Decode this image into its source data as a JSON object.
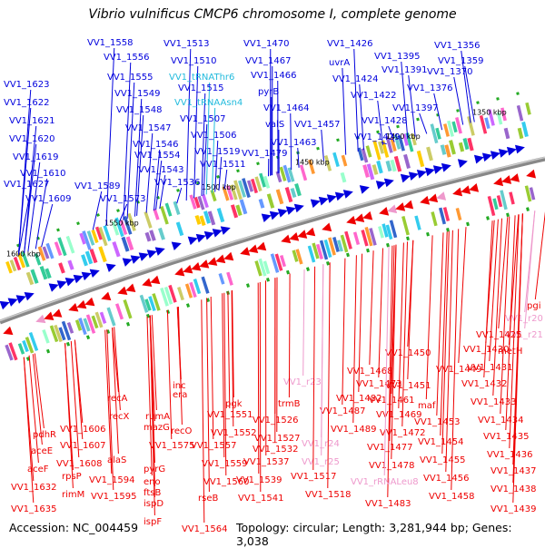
{
  "title": "Vibrio vulnificus CMCP6 chromosome I, complete genome",
  "footer": {
    "accession": "Accession: NC_004459",
    "summary": "Topology: circular; Length: 3,281,944 bp; Genes: 3,038"
  },
  "colors": {
    "forward": "#0000dd",
    "reverse": "#ee0000",
    "rna_forward": "#22bbdd",
    "rna_reverse": "#ee99cc",
    "backbone": "#888888",
    "green_mark": "#22aa22"
  },
  "ticks": [
    "1600 kbp",
    "1550 kbp",
    "1500 kbp",
    "1450 kbp",
    "1400 kbp",
    "1350 kbp"
  ],
  "top_labels": [
    {
      "text": "VV1_1623",
      "kind": "gene"
    },
    {
      "text": "VV1_1622",
      "kind": "gene"
    },
    {
      "text": "VV1_1621",
      "kind": "gene"
    },
    {
      "text": "VV1_1620",
      "kind": "gene"
    },
    {
      "text": "VV1_1619",
      "kind": "gene"
    },
    {
      "text": "VV1_1610",
      "kind": "gene"
    },
    {
      "text": "VV1_1627",
      "kind": "gene"
    },
    {
      "text": "VV1_1609",
      "kind": "gene"
    },
    {
      "text": "VV1_1589",
      "kind": "gene"
    },
    {
      "text": "VV1_1573",
      "kind": "gene"
    },
    {
      "text": "VV1_1558",
      "kind": "gene"
    },
    {
      "text": "VV1_1556",
      "kind": "gene"
    },
    {
      "text": "VV1_1555",
      "kind": "gene"
    },
    {
      "text": "VV1_1549",
      "kind": "gene"
    },
    {
      "text": "VV1_1548",
      "kind": "gene"
    },
    {
      "text": "VV1_1547",
      "kind": "gene"
    },
    {
      "text": "VV1_1546",
      "kind": "gene"
    },
    {
      "text": "VV1_1554",
      "kind": "gene"
    },
    {
      "text": "VV1_1543",
      "kind": "gene"
    },
    {
      "text": "VV1_1536",
      "kind": "gene"
    },
    {
      "text": "VV1_1513",
      "kind": "gene"
    },
    {
      "text": "VV1_1510",
      "kind": "gene"
    },
    {
      "text": "VV1_tRNAThr6",
      "kind": "rna"
    },
    {
      "text": "VV1_1515",
      "kind": "gene"
    },
    {
      "text": "VV1_tRNAAsn4",
      "kind": "rna"
    },
    {
      "text": "VV1_1507",
      "kind": "gene"
    },
    {
      "text": "VV1_1506",
      "kind": "gene"
    },
    {
      "text": "VV1_1519",
      "kind": "gene"
    },
    {
      "text": "VV1_1511",
      "kind": "gene"
    },
    {
      "text": "VV1_1470",
      "kind": "gene"
    },
    {
      "text": "VV1_1467",
      "kind": "gene"
    },
    {
      "text": "VV1_1466",
      "kind": "gene"
    },
    {
      "text": "pyrB",
      "kind": "gene"
    },
    {
      "text": "VV1_1464",
      "kind": "gene"
    },
    {
      "text": "valS",
      "kind": "gene"
    },
    {
      "text": "VV1_1463",
      "kind": "gene"
    },
    {
      "text": "VV1_1479",
      "kind": "gene"
    },
    {
      "text": "VV1_1457",
      "kind": "gene"
    },
    {
      "text": "VV1_1426",
      "kind": "gene"
    },
    {
      "text": "uvrA",
      "kind": "gene"
    },
    {
      "text": "VV1_1424",
      "kind": "gene"
    },
    {
      "text": "VV1_1422",
      "kind": "gene"
    },
    {
      "text": "VV1_1428",
      "kind": "gene"
    },
    {
      "text": "VV1_1429",
      "kind": "gene"
    },
    {
      "text": "VV1_1395",
      "kind": "gene"
    },
    {
      "text": "VV1_1391",
      "kind": "gene"
    },
    {
      "text": "VV1_1397",
      "kind": "gene"
    },
    {
      "text": "VV1_1376",
      "kind": "gene"
    },
    {
      "text": "VV1_1370",
      "kind": "gene"
    },
    {
      "text": "VV1_1356",
      "kind": "gene"
    },
    {
      "text": "VV1_1359",
      "kind": "gene"
    }
  ],
  "bottom_labels": [
    {
      "text": "pgi",
      "kind": "gene"
    },
    {
      "text": "VV1_r20",
      "kind": "rna"
    },
    {
      "text": "VV1_r21",
      "kind": "rna"
    },
    {
      "text": "VV1_1425",
      "kind": "gene"
    },
    {
      "text": "metH",
      "kind": "gene"
    },
    {
      "text": "VV1_1430",
      "kind": "gene"
    },
    {
      "text": "VV1_1450",
      "kind": "gene"
    },
    {
      "text": "VV1_1449",
      "kind": "gene"
    },
    {
      "text": "VV1_1431",
      "kind": "gene"
    },
    {
      "text": "VV1_1432",
      "kind": "gene"
    },
    {
      "text": "VV1_1433",
      "kind": "gene"
    },
    {
      "text": "VV1_1434",
      "kind": "gene"
    },
    {
      "text": "VV1_1435",
      "kind": "gene"
    },
    {
      "text": "VV1_1436",
      "kind": "gene"
    },
    {
      "text": "VV1_1437",
      "kind": "gene"
    },
    {
      "text": "VV1_1438",
      "kind": "gene"
    },
    {
      "text": "VV1_1439",
      "kind": "gene"
    },
    {
      "text": "VV1_1468",
      "kind": "gene"
    },
    {
      "text": "VV1_1473",
      "kind": "gene"
    },
    {
      "text": "VV1_1451",
      "kind": "gene"
    },
    {
      "text": "VV1_1461",
      "kind": "gene"
    },
    {
      "text": "maf",
      "kind": "gene"
    },
    {
      "text": "VV1_1469",
      "kind": "gene"
    },
    {
      "text": "VV1_1453",
      "kind": "gene"
    },
    {
      "text": "VV1_1472",
      "kind": "gene"
    },
    {
      "text": "VV1_1454",
      "kind": "gene"
    },
    {
      "text": "VV1_1477",
      "kind": "gene"
    },
    {
      "text": "VV1_1455",
      "kind": "gene"
    },
    {
      "text": "VV1_1478",
      "kind": "gene"
    },
    {
      "text": "VV1_1456",
      "kind": "gene"
    },
    {
      "text": "VV1_1458",
      "kind": "gene"
    },
    {
      "text": "VV1_1483",
      "kind": "gene"
    },
    {
      "text": "VV1_rRNALeu8",
      "kind": "rna"
    },
    {
      "text": "VV1_1482",
      "kind": "gene"
    },
    {
      "text": "VV1_1487",
      "kind": "gene"
    },
    {
      "text": "VV1_1489",
      "kind": "gene"
    },
    {
      "text": "VV1_r24",
      "kind": "rna"
    },
    {
      "text": "VV1_r25",
      "kind": "rna"
    },
    {
      "text": "VV1_r23",
      "kind": "rna"
    },
    {
      "text": "VV1_1517",
      "kind": "gene"
    },
    {
      "text": "VV1_1518",
      "kind": "gene"
    },
    {
      "text": "trmB",
      "kind": "gene"
    },
    {
      "text": "VV1_1526",
      "kind": "gene"
    },
    {
      "text": "VV1_1527",
      "kind": "gene"
    },
    {
      "text": "VV1_1532",
      "kind": "gene"
    },
    {
      "text": "VV1_1537",
      "kind": "gene"
    },
    {
      "text": "VV1_1539",
      "kind": "gene"
    },
    {
      "text": "VV1_1541",
      "kind": "gene"
    },
    {
      "text": "pgk",
      "kind": "gene"
    },
    {
      "text": "VV1_1551",
      "kind": "gene"
    },
    {
      "text": "VV1_1552",
      "kind": "gene"
    },
    {
      "text": "VV1_1557",
      "kind": "gene"
    },
    {
      "text": "VV1_1559",
      "kind": "gene"
    },
    {
      "text": "VV1_1560",
      "kind": "gene"
    },
    {
      "text": "rseB",
      "kind": "gene"
    },
    {
      "text": "VV1_1564",
      "kind": "gene"
    },
    {
      "text": "inc",
      "kind": "gene"
    },
    {
      "text": "era",
      "kind": "gene"
    },
    {
      "text": "recO",
      "kind": "gene"
    },
    {
      "text": "rumA",
      "kind": "gene"
    },
    {
      "text": "mazG",
      "kind": "gene"
    },
    {
      "text": "VV1_1575",
      "kind": "gene"
    },
    {
      "text": "pyrG",
      "kind": "gene"
    },
    {
      "text": "eno",
      "kind": "gene"
    },
    {
      "text": "ftsB",
      "kind": "gene"
    },
    {
      "text": "ispD",
      "kind": "gene"
    },
    {
      "text": "ispF",
      "kind": "gene"
    },
    {
      "text": "recA",
      "kind": "gene"
    },
    {
      "text": "recX",
      "kind": "gene"
    },
    {
      "text": "alaS",
      "kind": "gene"
    },
    {
      "text": "VV1_1594",
      "kind": "gene"
    },
    {
      "text": "VV1_1595",
      "kind": "gene"
    },
    {
      "text": "VV1_1606",
      "kind": "gene"
    },
    {
      "text": "VV1_1607",
      "kind": "gene"
    },
    {
      "text": "VV1_1608",
      "kind": "gene"
    },
    {
      "text": "rpsP",
      "kind": "gene"
    },
    {
      "text": "rimM",
      "kind": "gene"
    },
    {
      "text": "pdhR",
      "kind": "gene"
    },
    {
      "text": "aceE",
      "kind": "gene"
    },
    {
      "text": "aceF",
      "kind": "gene"
    },
    {
      "text": "VV1_1632",
      "kind": "gene"
    },
    {
      "text": "VV1_1635",
      "kind": "gene"
    }
  ]
}
